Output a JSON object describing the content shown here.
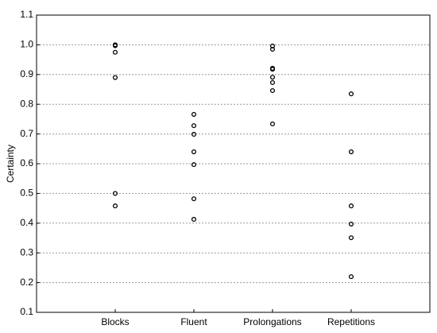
{
  "chart_data": {
    "type": "scatter",
    "y_label": "Certainty",
    "categories": [
      "Blocks",
      "Fluent",
      "Prolongations",
      "Repetitions"
    ],
    "values": [
      [
        1.0,
        0.997,
        0.975,
        0.89,
        0.5,
        0.458
      ],
      [
        0.766,
        0.728,
        0.699,
        0.64,
        0.597,
        0.482,
        0.413
      ],
      [
        0.996,
        0.985,
        0.921,
        0.918,
        0.891,
        0.873,
        0.846,
        0.734
      ],
      [
        0.835,
        0.64,
        0.458,
        0.397,
        0.351,
        0.22
      ]
    ],
    "color": "#000000",
    "ylim": [
      0.1,
      1.1
    ],
    "yticks": [
      0.1,
      0.2,
      0.3,
      0.4,
      0.5,
      0.6,
      0.7,
      0.8,
      0.9,
      {
        "value": 1,
        "label": "1.0"
      },
      1.1
    ],
    "grid": true
  }
}
